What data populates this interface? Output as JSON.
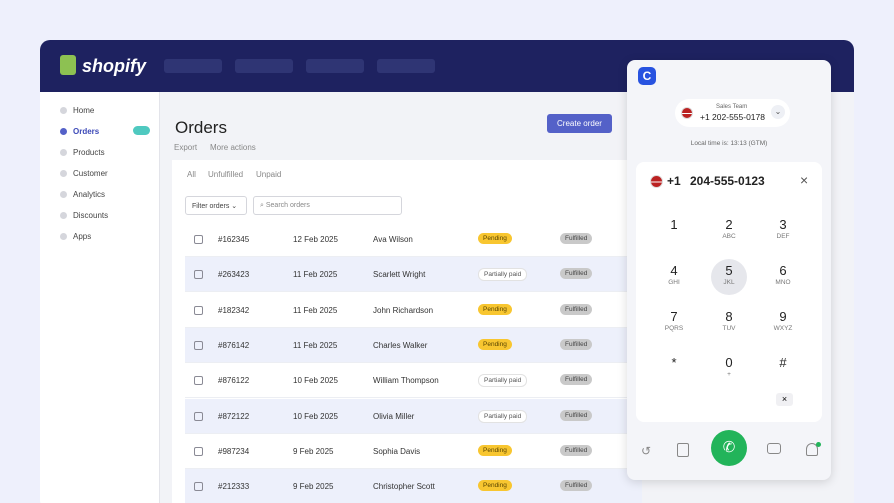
{
  "header": {
    "logo": "shopify"
  },
  "sidebar": {
    "items": [
      "Home",
      "Orders",
      "Products",
      "Customer",
      "Analytics",
      "Discounts",
      "Apps"
    ]
  },
  "page": {
    "title": "Orders",
    "actions": [
      "Export",
      "More actions"
    ],
    "button": "Create order",
    "tabs": [
      "All",
      "Unfulfilled",
      "Unpaid"
    ],
    "filter": "Filter orders",
    "search": "Search orders"
  },
  "orders": {
    "rows": [
      [
        "#162345",
        "12 Feb 2025",
        "Ava Wilson",
        "Pending",
        "Fulfilled"
      ],
      [
        "#263423",
        "11 Feb 2025",
        "Scarlett Wright",
        "Partially paid",
        "Fulfilled"
      ],
      [
        "#182342",
        "11 Feb 2025",
        "John Richardson",
        "Pending",
        "Fulfilled"
      ],
      [
        "#876142",
        "11 Feb 2025",
        "Charles Walker",
        "Pending",
        "Fulfilled"
      ],
      [
        "#876122",
        "10 Feb 2025",
        "William Thompson",
        "Partially paid",
        "Fulfilled"
      ],
      [
        "#872122",
        "10 Feb 2025",
        "Olivia Miller",
        "Partially paid",
        "Fulfilled"
      ],
      [
        "#987234",
        "9 Feb 2025",
        "Sophia Davis",
        "Pending",
        "Fulfilled"
      ],
      [
        "#212333",
        "9 Feb 2025",
        "Christopher Scott",
        "Pending",
        "Fulfilled"
      ]
    ]
  },
  "dialer": {
    "team": "Sales Team",
    "caller_id": "+1 202-555-0178",
    "local_time": "Local time is: 13:13 (GTM)",
    "country_code": "+1",
    "number": "204-555-0123",
    "keys": [
      {
        "digit": "1"
      },
      {
        "digit": "2",
        "letters": "ABC"
      },
      {
        "digit": "3",
        "letters": "DEF"
      },
      {
        "digit": "4",
        "letters": "GHI"
      },
      {
        "digit": "5",
        "letters": "JKL"
      },
      {
        "digit": "6",
        "letters": "MNO"
      },
      {
        "digit": "7",
        "letters": "PQRS"
      },
      {
        "digit": "8",
        "letters": "TUV"
      },
      {
        "digit": "9",
        "letters": "WXYZ"
      },
      {
        "digit": "*"
      },
      {
        "digit": "0",
        "letters": "+"
      },
      {
        "digit": "#"
      }
    ]
  }
}
